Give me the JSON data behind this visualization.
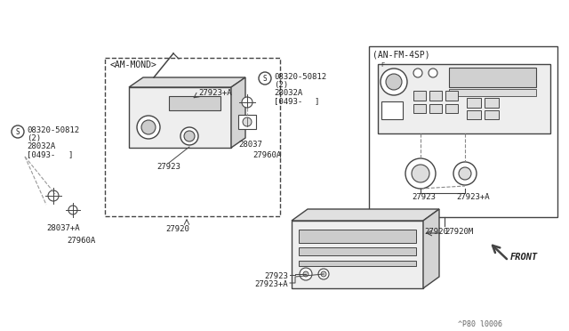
{
  "bg_color": "#ffffff",
  "line_color": "#555555",
  "diagram_note": "^P80 l0006",
  "parts": {
    "am_mono_label": "<AM-MOND>",
    "am_fm_label": "(AN-FM-4SP)",
    "part_27920": "27920",
    "part_27920M": "27920M",
    "part_27923": "27923",
    "part_27923A": "27923+A",
    "part_28037": "28037",
    "part_28037A": "28037+A",
    "part_27960A": "27960A",
    "part_08320": "08320-50812",
    "part_28032A": "28032A"
  },
  "colors": {
    "box_edge": "#444444",
    "fill": "#f5f5f5",
    "component": "#888888",
    "text": "#222222",
    "dashed": "#666666"
  }
}
